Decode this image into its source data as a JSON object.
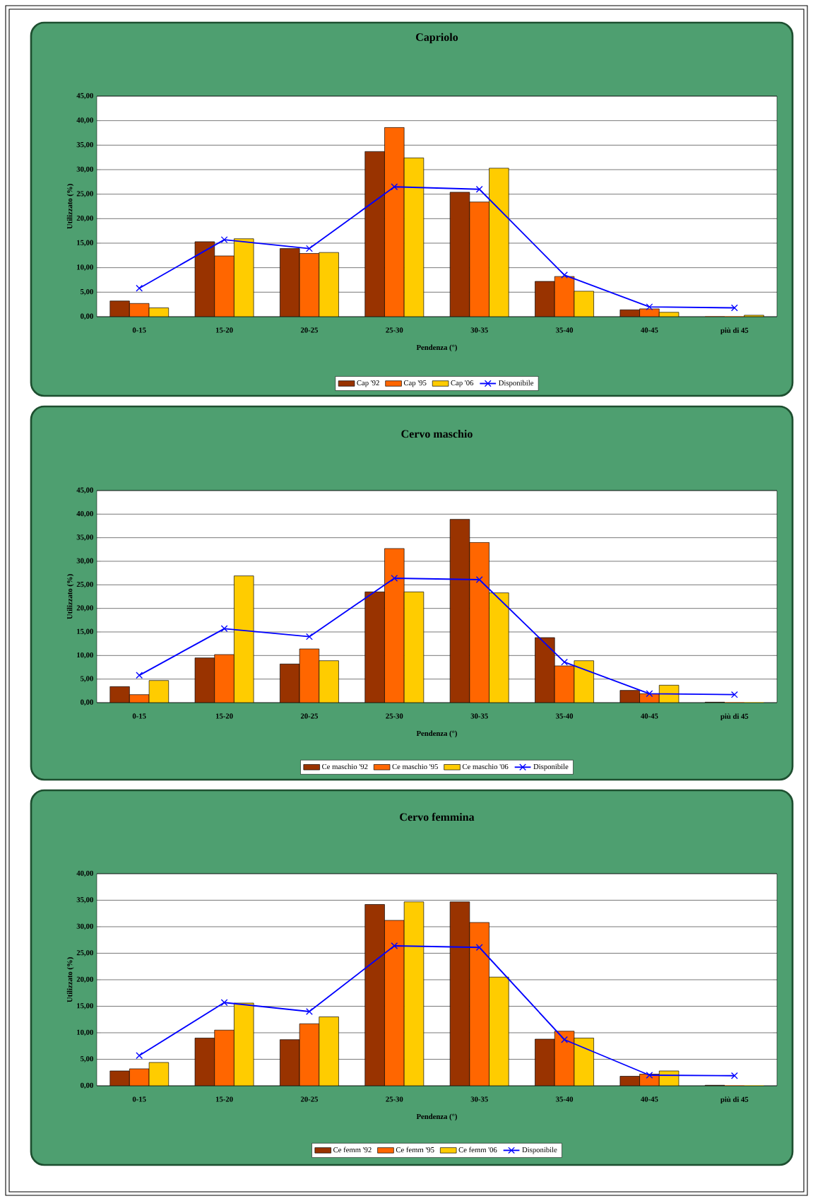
{
  "chart_data": [
    {
      "type": "bar",
      "title": "Capriolo",
      "xlabel": "Pendenza (°)",
      "ylabel": "Utilizzato (%)",
      "categories": [
        "0-15",
        "15-20",
        "20-25",
        "25-30",
        "30-35",
        "35-40",
        "40-45",
        "più di 45"
      ],
      "series": [
        {
          "name": "Cap '92",
          "color": "#993300",
          "values": [
            3.2,
            15.3,
            13.9,
            33.7,
            25.4,
            7.2,
            1.4,
            0
          ]
        },
        {
          "name": "Cap '95",
          "color": "#ff6600",
          "values": [
            2.7,
            12.4,
            12.9,
            38.6,
            23.4,
            8.2,
            1.6,
            0
          ]
        },
        {
          "name": "Cap '06",
          "color": "#ffcc00",
          "values": [
            1.8,
            15.9,
            13.1,
            32.4,
            30.3,
            5.2,
            0.9,
            0.3
          ]
        },
        {
          "name": "Disponibile",
          "type": "line",
          "color": "#0000ff",
          "marker": "cross",
          "values": [
            5.8,
            15.7,
            13.9,
            26.5,
            26.0,
            8.5,
            2.0,
            1.8
          ]
        }
      ],
      "ylim": [
        0,
        45
      ],
      "yticks": [
        {
          "value": 0,
          "label": "0,00"
        },
        {
          "value": 5,
          "label": "5,00"
        },
        {
          "value": 10,
          "label": "10,00"
        },
        {
          "value": 15,
          "label": "15,00"
        },
        {
          "value": 20,
          "label": "20,00"
        },
        {
          "value": 25,
          "label": "25,00"
        },
        {
          "value": 30,
          "label": "30,00"
        },
        {
          "value": 35,
          "label": "35,00"
        },
        {
          "value": 40,
          "label": "40,00"
        },
        {
          "value": 45,
          "label": "45,00"
        }
      ],
      "grid": "y",
      "legend": "bottom"
    },
    {
      "type": "bar",
      "title": "Cervo maschio",
      "xlabel": "Pendenza (°)",
      "ylabel": "Utilizzato (%)",
      "categories": [
        "0-15",
        "15-20",
        "20-25",
        "25-30",
        "30-35",
        "35-40",
        "40-45",
        "più di 45"
      ],
      "series": [
        {
          "name": "Ce maschio '92",
          "color": "#993300",
          "values": [
            3.4,
            9.5,
            8.2,
            23.5,
            38.9,
            13.8,
            2.6,
            0.1
          ]
        },
        {
          "name": "Ce maschio '95",
          "color": "#ff6600",
          "values": [
            1.7,
            10.2,
            11.4,
            32.7,
            34.0,
            7.8,
            1.9,
            0
          ]
        },
        {
          "name": "Ce maschio '06",
          "color": "#ffcc00",
          "values": [
            4.7,
            26.9,
            8.9,
            23.5,
            23.3,
            8.9,
            3.7,
            0
          ]
        },
        {
          "name": "Disponibile",
          "type": "line",
          "color": "#0000ff",
          "marker": "cross",
          "values": [
            5.8,
            15.7,
            14.0,
            26.4,
            26.1,
            8.6,
            1.9,
            1.7
          ]
        }
      ],
      "ylim": [
        0,
        45
      ],
      "yticks": [
        {
          "value": 0,
          "label": "0,00"
        },
        {
          "value": 5,
          "label": "5,00"
        },
        {
          "value": 10,
          "label": "10,00"
        },
        {
          "value": 15,
          "label": "15,00"
        },
        {
          "value": 20,
          "label": "20,00"
        },
        {
          "value": 25,
          "label": "25,00"
        },
        {
          "value": 30,
          "label": "30,00"
        },
        {
          "value": 35,
          "label": "35,00"
        },
        {
          "value": 40,
          "label": "40,00"
        },
        {
          "value": 45,
          "label": "45,00"
        }
      ],
      "grid": "y",
      "legend": "bottom"
    },
    {
      "type": "bar",
      "title": "Cervo femmina",
      "xlabel": "Pendenza (°)",
      "ylabel": "Utilizzato (%)",
      "categories": [
        "0-15",
        "15-20",
        "20-25",
        "25-30",
        "30-35",
        "35-40",
        "40-45",
        "più di 45"
      ],
      "series": [
        {
          "name": "Ce femm '92",
          "color": "#993300",
          "values": [
            2.8,
            9.0,
            8.7,
            34.2,
            34.7,
            8.8,
            1.8,
            0.1
          ]
        },
        {
          "name": "Ce femm '95",
          "color": "#ff6600",
          "values": [
            3.2,
            10.5,
            11.7,
            31.2,
            30.8,
            10.3,
            2.2,
            0
          ]
        },
        {
          "name": "Ce femm '06",
          "color": "#ffcc00",
          "values": [
            4.4,
            15.6,
            13.0,
            34.7,
            20.5,
            9.0,
            2.8,
            0
          ]
        },
        {
          "name": "Disponibile",
          "type": "line",
          "color": "#0000ff",
          "marker": "cross",
          "values": [
            5.7,
            15.7,
            14.0,
            26.4,
            26.1,
            8.7,
            2.0,
            1.9
          ]
        }
      ],
      "ylim": [
        0,
        40
      ],
      "yticks": [
        {
          "value": 0,
          "label": "0,00"
        },
        {
          "value": 5,
          "label": "5,00"
        },
        {
          "value": 10,
          "label": "10,00"
        },
        {
          "value": 15,
          "label": "15,00"
        },
        {
          "value": 20,
          "label": "20,00"
        },
        {
          "value": 25,
          "label": "25,00"
        },
        {
          "value": 30,
          "label": "30,00"
        },
        {
          "value": 35,
          "label": "35,00"
        },
        {
          "value": 40,
          "label": "40,00"
        }
      ],
      "grid": "y",
      "legend": "bottom"
    }
  ]
}
